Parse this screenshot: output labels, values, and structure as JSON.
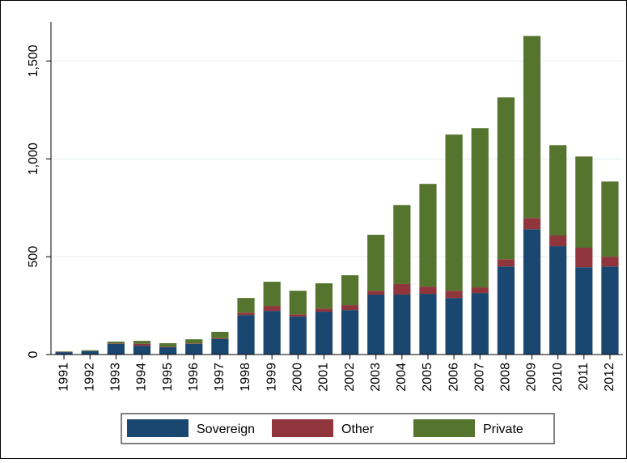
{
  "chart_data": {
    "type": "stacked-bar",
    "categories": [
      "1991",
      "1992",
      "1993",
      "1994",
      "1995",
      "1996",
      "1997",
      "1998",
      "1999",
      "2000",
      "2001",
      "2002",
      "2003",
      "2004",
      "2005",
      "2006",
      "2007",
      "2008",
      "2009",
      "2010",
      "2011",
      "2012"
    ],
    "series": [
      {
        "name": "Sovereign",
        "color": "#1a476f",
        "values": [
          12,
          18,
          54,
          45,
          37,
          54,
          79,
          202,
          223,
          194,
          219,
          227,
          306,
          306,
          310,
          289,
          314,
          450,
          640,
          554,
          446,
          450
        ]
      },
      {
        "name": "Other",
        "color": "#90353b",
        "values": [
          1,
          1,
          3,
          10,
          3,
          3,
          5,
          12,
          25,
          12,
          16,
          25,
          20,
          54,
          37,
          37,
          29,
          37,
          58,
          54,
          100,
          50
        ]
      },
      {
        "name": "Private",
        "color": "#55752f",
        "values": [
          3,
          3,
          9,
          15,
          18,
          21,
          32,
          75,
          124,
          120,
          129,
          153,
          286,
          404,
          525,
          798,
          814,
          827,
          930,
          462,
          466,
          384
        ]
      }
    ],
    "ylim": [
      0,
      1700
    ],
    "yticks": [
      0,
      500,
      {
        "value": 1000,
        "label": "1,000"
      },
      {
        "value": 1500,
        "label": "1,500"
      }
    ],
    "grid": true
  }
}
